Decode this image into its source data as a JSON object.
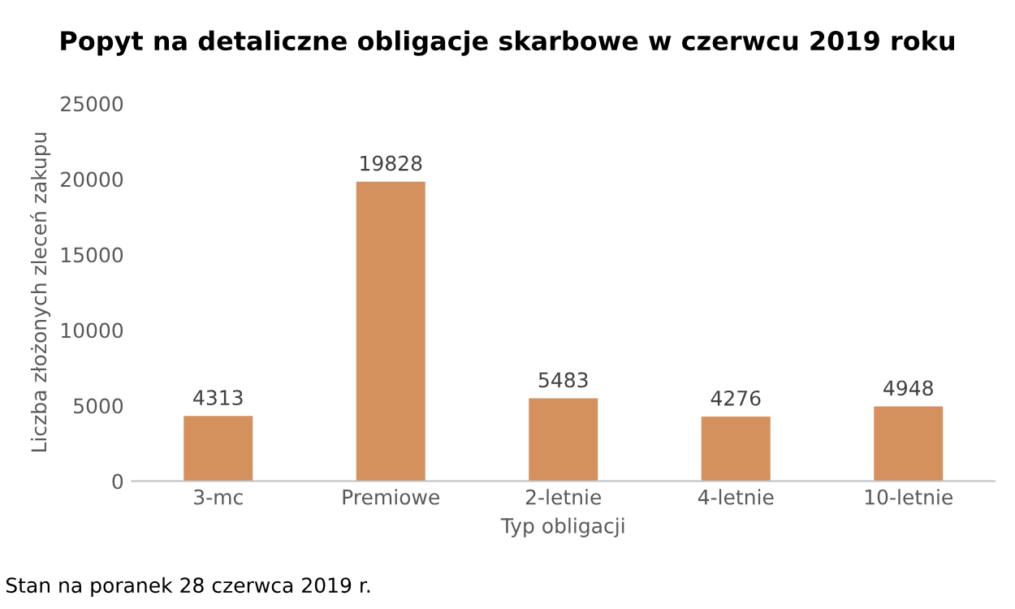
{
  "chart_data": {
    "type": "bar",
    "title": "Popyt na detaliczne obligacje skarbowe w czerwcu 2019 roku",
    "xlabel": "Typ obligacji",
    "ylabel": "Liczba złożonych zleceń zakupu",
    "categories": [
      "3-mc",
      "Premiowe",
      "2-letnie",
      "4-letnie",
      "10-letnie"
    ],
    "values": [
      4313,
      19828,
      5483,
      4276,
      4948
    ],
    "color": "#d4915e",
    "ylim": [
      0,
      25000
    ],
    "yticks": [
      0,
      5000,
      10000,
      15000,
      20000,
      25000
    ],
    "grid": false,
    "data_labels": true,
    "annotations": [
      "Stan na poranek 28 czerwca 2019 r."
    ]
  }
}
